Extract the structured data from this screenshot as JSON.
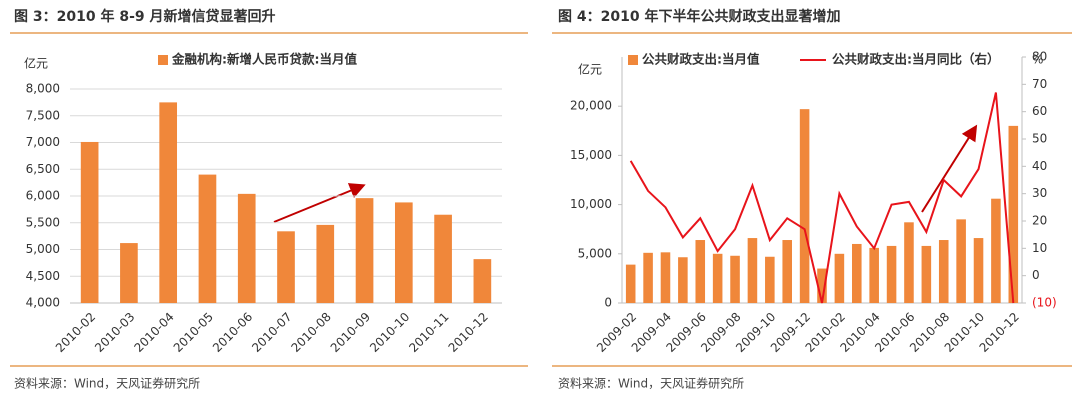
{
  "chart_data": [
    {
      "type": "bar",
      "title": "图 3：2010 年 8-9 月新增信贷显著回升",
      "y_label": "亿元",
      "source": "资料来源：Wind，天风证券研究所",
      "categories": [
        "2010-02",
        "2010-03",
        "2010-04",
        "2010-05",
        "2010-06",
        "2010-07",
        "2010-08",
        "2010-09",
        "2010-10",
        "2010-11",
        "2010-12"
      ],
      "series": [
        {
          "name": "金融机构:新增人民币贷款:当月值",
          "color": "#f0873a",
          "values": [
            7010,
            5120,
            7750,
            6400,
            6040,
            5340,
            5460,
            5960,
            5880,
            5650,
            4820
          ]
        }
      ],
      "ylim": [
        4000,
        8000
      ],
      "yticks": [
        {
          "value": 4000,
          "label": "4,000"
        },
        {
          "value": 4500,
          "label": "4,500"
        },
        {
          "value": 5000,
          "label": "5,000"
        },
        {
          "value": 5500,
          "label": "5,500"
        },
        {
          "value": 6000,
          "label": "6,000"
        },
        {
          "value": 6500,
          "label": "6,500"
        },
        {
          "value": 7000,
          "label": "7,000"
        },
        {
          "value": 7500,
          "label": "7,500"
        },
        {
          "value": 8000,
          "label": "8,000"
        }
      ],
      "grid": true
    },
    {
      "type": "bar-line",
      "title": "图 4：2010 年下半年公共财政支出显著增加",
      "y_label": "亿元",
      "y2_label": "%",
      "source": "资料来源：Wind，天风证券研究所",
      "categories": [
        "2009-02",
        null,
        "2009-04",
        null,
        "2009-06",
        null,
        "2009-08",
        null,
        "2009-10",
        null,
        "2009-12",
        null,
        "2010-02",
        null,
        "2010-04",
        null,
        "2010-06",
        null,
        "2010-08",
        null,
        "2010-10",
        null,
        "2010-12"
      ],
      "series": [
        {
          "name": "公共财政支出:当月值",
          "color": "#f0873a",
          "kind": "bar",
          "values": [
            3900,
            5100,
            5150,
            4650,
            6400,
            5000,
            4800,
            6600,
            4700,
            6400,
            19700,
            3500,
            5000,
            6000,
            5600,
            5800,
            8200,
            5800,
            6400,
            8500,
            6600,
            10600,
            18000
          ]
        },
        {
          "name": "公共财政支出:当月同比（右）",
          "color": "#e8141b",
          "kind": "line",
          "axis": "y2",
          "values": [
            42,
            31,
            25,
            14,
            21,
            9,
            17,
            33,
            13,
            21,
            17,
            -10,
            30,
            18,
            10,
            26,
            27,
            16,
            35,
            29,
            39,
            67,
            -10
          ]
        }
      ],
      "ylim": [
        0,
        25000
      ],
      "yticks": [
        0,
        {
          "value": 5000,
          "label": "5,000"
        },
        {
          "value": 10000,
          "label": "10,000"
        },
        {
          "value": 15000,
          "label": "15,000"
        },
        {
          "value": 20000,
          "label": "20,000"
        }
      ],
      "y2lim": [
        -10,
        80
      ],
      "y2ticks": [
        {
          "value": -10,
          "label": "(10)"
        },
        0,
        10,
        20,
        30,
        40,
        50,
        60,
        70,
        80
      ],
      "grid": false
    }
  ]
}
